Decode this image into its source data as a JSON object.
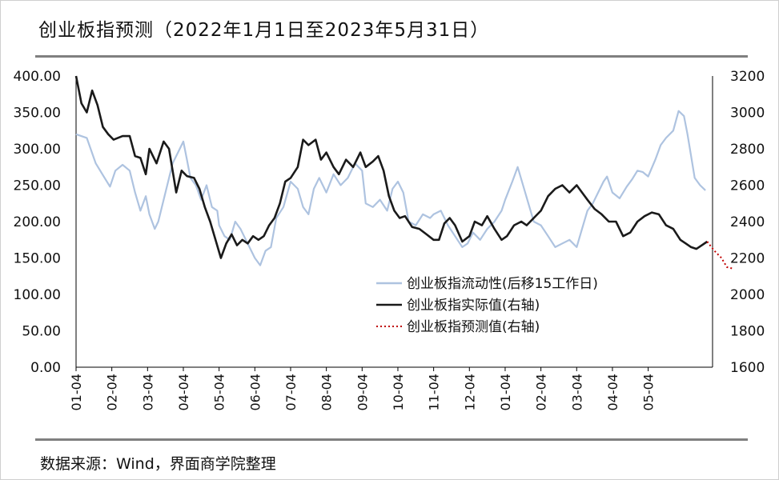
{
  "title": "创业板指预测（2022年1月1日至2023年5月31日）",
  "source": "数据来源：Wind，界面商学院整理",
  "chart_data": {
    "type": "line",
    "x_tick_labels": [
      "01-04",
      "02-04",
      "03-04",
      "04-04",
      "05-04",
      "06-04",
      "07-04",
      "08-04",
      "09-04",
      "10-04",
      "11-04",
      "12-04",
      "01-04",
      "02-04",
      "03-04",
      "04-04",
      "05-04"
    ],
    "y_left_ticks": [
      "400.00",
      "350.00",
      "300.00",
      "250.00",
      "200.00",
      "150.00",
      "100.00",
      "50.00",
      "0.00"
    ],
    "y_right_ticks": [
      "3200",
      "3000",
      "2800",
      "2600",
      "2400",
      "2200",
      "2000",
      "1800",
      "1600"
    ],
    "ylim_left": [
      0,
      400
    ],
    "ylim_right": [
      1600,
      3200
    ],
    "legend_position": "right-lower",
    "series": [
      {
        "name": "创业板指流动性(后移15工作日)",
        "axis": "left",
        "color": "#aec3e0",
        "style": "solid",
        "values": [
          [
            0,
            320
          ],
          [
            0.3,
            315
          ],
          [
            0.55,
            280
          ],
          [
            0.8,
            260
          ],
          [
            0.95,
            248
          ],
          [
            1.1,
            270
          ],
          [
            1.3,
            278
          ],
          [
            1.5,
            270
          ],
          [
            1.65,
            240
          ],
          [
            1.8,
            215
          ],
          [
            1.95,
            235
          ],
          [
            2.05,
            210
          ],
          [
            2.2,
            190
          ],
          [
            2.3,
            200
          ],
          [
            2.45,
            230
          ],
          [
            2.55,
            250
          ],
          [
            2.7,
            280
          ],
          [
            2.85,
            295
          ],
          [
            3.0,
            310
          ],
          [
            3.1,
            285
          ],
          [
            3.2,
            260
          ],
          [
            3.35,
            250
          ],
          [
            3.5,
            230
          ],
          [
            3.65,
            250
          ],
          [
            3.8,
            220
          ],
          [
            3.95,
            215
          ],
          [
            4.0,
            195
          ],
          [
            4.15,
            180
          ],
          [
            4.3,
            175
          ],
          [
            4.45,
            200
          ],
          [
            4.6,
            190
          ],
          [
            4.75,
            175
          ],
          [
            4.9,
            160
          ],
          [
            5.0,
            150
          ],
          [
            5.15,
            140
          ],
          [
            5.3,
            160
          ],
          [
            5.45,
            165
          ],
          [
            5.6,
            205
          ],
          [
            5.8,
            220
          ],
          [
            6.0,
            255
          ],
          [
            6.2,
            245
          ],
          [
            6.35,
            220
          ],
          [
            6.5,
            210
          ],
          [
            6.65,
            245
          ],
          [
            6.8,
            260
          ],
          [
            7.0,
            240
          ],
          [
            7.2,
            265
          ],
          [
            7.4,
            250
          ],
          [
            7.6,
            260
          ],
          [
            7.8,
            280
          ],
          [
            8.0,
            270
          ],
          [
            8.1,
            225
          ],
          [
            8.3,
            220
          ],
          [
            8.5,
            230
          ],
          [
            8.7,
            215
          ],
          [
            8.85,
            245
          ],
          [
            9.0,
            255
          ],
          [
            9.15,
            240
          ],
          [
            9.3,
            200
          ],
          [
            9.5,
            195
          ],
          [
            9.7,
            210
          ],
          [
            9.9,
            205
          ],
          [
            10.0,
            210
          ],
          [
            10.2,
            215
          ],
          [
            10.4,
            195
          ],
          [
            10.6,
            180
          ],
          [
            10.8,
            165
          ],
          [
            10.95,
            170
          ],
          [
            11.1,
            185
          ],
          [
            11.3,
            175
          ],
          [
            11.5,
            190
          ],
          [
            11.7,
            200
          ],
          [
            11.9,
            215
          ],
          [
            12.0,
            230
          ],
          [
            12.2,
            255
          ],
          [
            12.35,
            275
          ],
          [
            12.5,
            250
          ],
          [
            12.65,
            225
          ],
          [
            12.8,
            200
          ],
          [
            13.0,
            195
          ],
          [
            13.2,
            180
          ],
          [
            13.4,
            165
          ],
          [
            13.6,
            170
          ],
          [
            13.8,
            175
          ],
          [
            14.0,
            165
          ],
          [
            14.15,
            190
          ],
          [
            14.3,
            215
          ],
          [
            14.45,
            225
          ],
          [
            14.6,
            240
          ],
          [
            14.75,
            255
          ],
          [
            14.85,
            262
          ],
          [
            15.0,
            240
          ],
          [
            15.2,
            232
          ],
          [
            15.4,
            248
          ],
          [
            15.55,
            258
          ],
          [
            15.7,
            270
          ],
          [
            15.85,
            268
          ],
          [
            16.0,
            262
          ],
          [
            16.2,
            285
          ],
          [
            16.35,
            305
          ],
          [
            16.5,
            315
          ],
          [
            16.7,
            325
          ],
          [
            16.85,
            352
          ],
          [
            17.0,
            345
          ],
          [
            17.1,
            320
          ],
          [
            17.2,
            290
          ],
          [
            17.3,
            260
          ],
          [
            17.45,
            250
          ],
          [
            17.6,
            243
          ]
        ]
      },
      {
        "name": "创业板指实际值(右轴)",
        "axis": "right",
        "color": "#1a1a1a",
        "style": "solid",
        "values": [
          [
            0,
            3200
          ],
          [
            0.15,
            3050
          ],
          [
            0.3,
            3000
          ],
          [
            0.45,
            3120
          ],
          [
            0.6,
            3040
          ],
          [
            0.75,
            2920
          ],
          [
            0.9,
            2880
          ],
          [
            1.05,
            2850
          ],
          [
            1.3,
            2870
          ],
          [
            1.5,
            2870
          ],
          [
            1.65,
            2760
          ],
          [
            1.8,
            2750
          ],
          [
            1.95,
            2660
          ],
          [
            2.05,
            2800
          ],
          [
            2.25,
            2720
          ],
          [
            2.45,
            2840
          ],
          [
            2.6,
            2800
          ],
          [
            2.8,
            2560
          ],
          [
            2.95,
            2680
          ],
          [
            3.1,
            2650
          ],
          [
            3.3,
            2640
          ],
          [
            3.45,
            2580
          ],
          [
            3.6,
            2480
          ],
          [
            3.75,
            2400
          ],
          [
            3.9,
            2300
          ],
          [
            4.05,
            2200
          ],
          [
            4.2,
            2280
          ],
          [
            4.35,
            2330
          ],
          [
            4.5,
            2270
          ],
          [
            4.65,
            2300
          ],
          [
            4.8,
            2280
          ],
          [
            4.95,
            2320
          ],
          [
            5.1,
            2300
          ],
          [
            5.25,
            2320
          ],
          [
            5.4,
            2380
          ],
          [
            5.55,
            2420
          ],
          [
            5.7,
            2500
          ],
          [
            5.85,
            2620
          ],
          [
            6.0,
            2640
          ],
          [
            6.2,
            2700
          ],
          [
            6.35,
            2850
          ],
          [
            6.5,
            2820
          ],
          [
            6.7,
            2850
          ],
          [
            6.85,
            2740
          ],
          [
            7.0,
            2780
          ],
          [
            7.2,
            2700
          ],
          [
            7.35,
            2660
          ],
          [
            7.55,
            2740
          ],
          [
            7.75,
            2700
          ],
          [
            7.95,
            2780
          ],
          [
            8.1,
            2700
          ],
          [
            8.3,
            2730
          ],
          [
            8.45,
            2760
          ],
          [
            8.6,
            2680
          ],
          [
            8.75,
            2540
          ],
          [
            8.9,
            2460
          ],
          [
            9.05,
            2420
          ],
          [
            9.2,
            2430
          ],
          [
            9.4,
            2370
          ],
          [
            9.6,
            2360
          ],
          [
            9.8,
            2330
          ],
          [
            10.0,
            2300
          ],
          [
            10.15,
            2300
          ],
          [
            10.3,
            2390
          ],
          [
            10.45,
            2420
          ],
          [
            10.6,
            2380
          ],
          [
            10.8,
            2290
          ],
          [
            11.0,
            2320
          ],
          [
            11.15,
            2400
          ],
          [
            11.35,
            2380
          ],
          [
            11.5,
            2430
          ],
          [
            11.7,
            2360
          ],
          [
            11.9,
            2300
          ],
          [
            12.05,
            2320
          ],
          [
            12.25,
            2380
          ],
          [
            12.45,
            2400
          ],
          [
            12.6,
            2380
          ],
          [
            12.8,
            2420
          ],
          [
            13.0,
            2460
          ],
          [
            13.2,
            2540
          ],
          [
            13.4,
            2580
          ],
          [
            13.6,
            2600
          ],
          [
            13.8,
            2560
          ],
          [
            14.0,
            2600
          ],
          [
            14.15,
            2560
          ],
          [
            14.3,
            2520
          ],
          [
            14.5,
            2470
          ],
          [
            14.7,
            2440
          ],
          [
            14.9,
            2400
          ],
          [
            15.1,
            2400
          ],
          [
            15.3,
            2320
          ],
          [
            15.5,
            2340
          ],
          [
            15.7,
            2400
          ],
          [
            15.9,
            2430
          ],
          [
            16.1,
            2450
          ],
          [
            16.3,
            2440
          ],
          [
            16.5,
            2380
          ],
          [
            16.7,
            2360
          ],
          [
            16.9,
            2300
          ],
          [
            17.05,
            2280
          ],
          [
            17.2,
            2260
          ],
          [
            17.35,
            2250
          ],
          [
            17.5,
            2270
          ],
          [
            17.65,
            2290
          ]
        ]
      },
      {
        "name": "创业板指预测值(右轴)",
        "axis": "right",
        "color": "#c00000",
        "style": "dotted",
        "values": [
          [
            17.65,
            2290
          ],
          [
            17.85,
            2240
          ],
          [
            18.05,
            2200
          ],
          [
            18.2,
            2150
          ],
          [
            18.4,
            2140
          ]
        ]
      }
    ]
  }
}
